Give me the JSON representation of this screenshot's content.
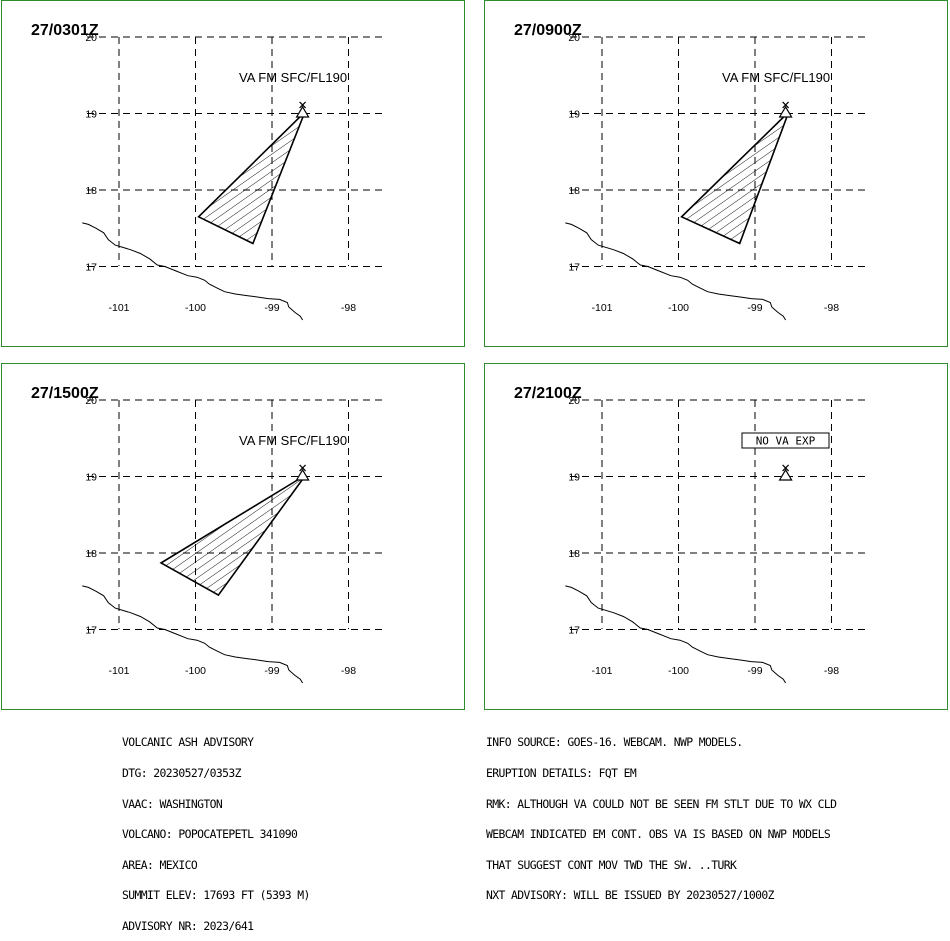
{
  "panels": [
    {
      "time": "27/0301Z",
      "va_label": "VA FM SFC/FL190",
      "no_va": "",
      "ash": [
        [
          -99.96,
          17.65
        ],
        [
          -99.25,
          17.3
        ],
        [
          -98.57,
          19.02
        ]
      ]
    },
    {
      "time": "27/0900Z",
      "va_label": "VA FM SFC/FL190",
      "no_va": "",
      "ash": [
        [
          -99.96,
          17.65
        ],
        [
          -99.2,
          17.3
        ],
        [
          -98.56,
          19.02
        ]
      ]
    },
    {
      "time": "27/1500Z",
      "va_label": "VA FM SFC/FL190",
      "no_va": "",
      "ash": [
        [
          -100.45,
          17.87
        ],
        [
          -99.7,
          17.45
        ],
        [
          -98.56,
          19.02
        ]
      ]
    },
    {
      "time": "27/2100Z",
      "va_label": "",
      "no_va": "NO VA EXP",
      "ash": []
    }
  ],
  "axes": {
    "lon_ticks": [
      "-101",
      "-100",
      "-99",
      "-98"
    ],
    "lat_ticks": [
      "20",
      "19",
      "18",
      "17"
    ],
    "lon_values": [
      -101,
      -100,
      -99,
      -98
    ],
    "lat_values": [
      20,
      19,
      18,
      17
    ]
  },
  "volcano": {
    "lon": -98.6,
    "lat": 19.02,
    "icon": "volcano-triangle-icon"
  },
  "colors": {
    "panel_border": "#2e8b2e"
  },
  "advisory_left": {
    "l1": "VOLCANIC ASH ADVISORY",
    "l2": "DTG: 20230527/0353Z",
    "l3": "VAAC: WASHINGTON",
    "l4": "VOLCANO: POPOCATEPETL 341090",
    "l5": "AREA: MEXICO",
    "l6": "SUMMIT ELEV: 17693 FT (5393 M)",
    "l7": "ADVISORY NR: 2023/641"
  },
  "advisory_right": {
    "l1": "INFO SOURCE: GOES-16. WEBCAM. NWP MODELS.",
    "l2": "ERUPTION DETAILS: FQT EM",
    "l3": "RMK: ALTHOUGH VA COULD NOT BE SEEN FM STLT DUE TO WX CLD",
    "l4": "WEBCAM INDICATED EM CONT. OBS VA IS BASED ON NWP MODELS",
    "l5": "THAT SUGGEST CONT MOV TWD THE SW. ..TURK",
    "l6": "NXT ADVISORY: WILL BE ISSUED BY 20230527/1000Z"
  }
}
